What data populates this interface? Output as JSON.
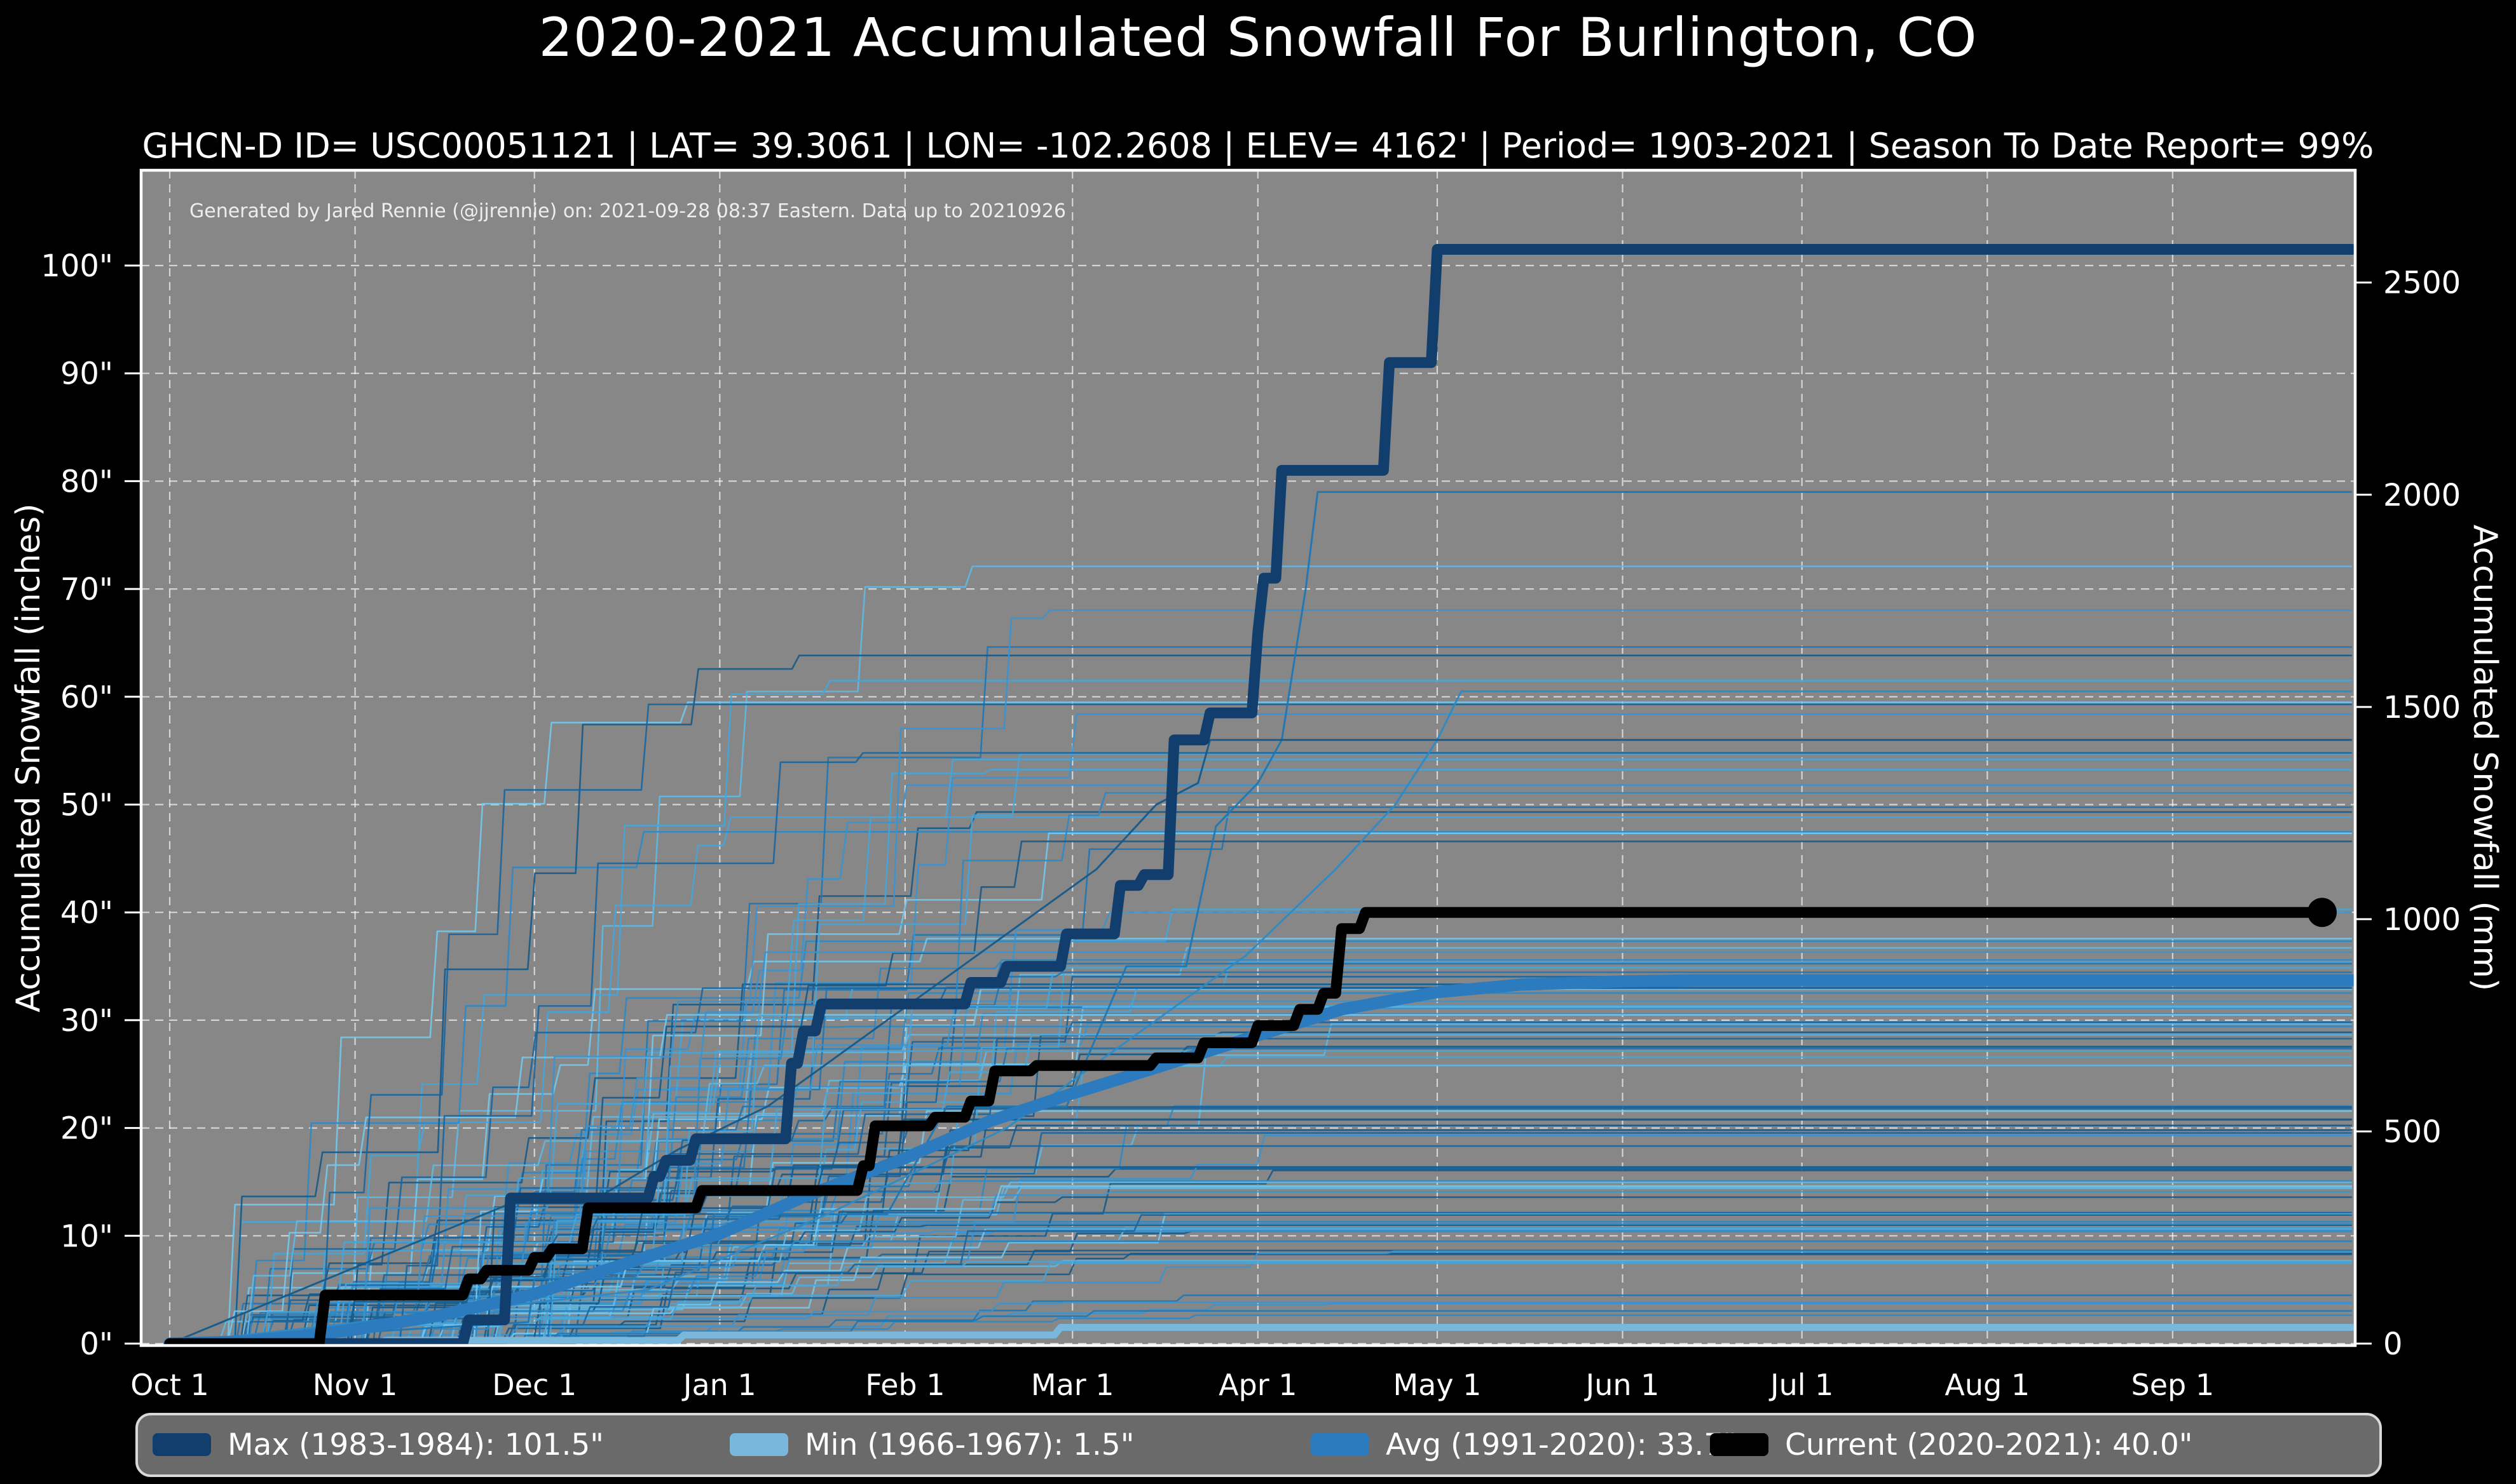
{
  "header": {
    "title": "2020-2021 Accumulated Snowfall For Burlington, CO",
    "subtitle": "GHCN-D ID= USC00051121 | LAT= 39.3061 | LON= -102.2608 | ELEV= 4162' | Period= 1903-2021 | Season To Date Report= 99%"
  },
  "attribution": "Generated by Jared Rennie (@jjrennie) on: 2021-09-28 08:37 Eastern. Data up to 20210926",
  "colors": {
    "figure_background": "#000000",
    "plot_background": "#878787",
    "gridline": "rgba(255,255,255,0.65)",
    "plot_border": "#ffffff",
    "text": "#ffffff",
    "max_line": "#123e6d",
    "min_line": "#79b7dc",
    "avg_line": "#2b7bbe",
    "current_line": "#000000",
    "legend_background": "#6a6a6a",
    "legend_border": "#d9d9d9"
  },
  "legend": {
    "items": [
      {
        "id": "max",
        "label": "Max (1983-1984):  101.5\"",
        "color": "#123e6d"
      },
      {
        "id": "min",
        "label": "Min (1966-1967):    1.5\"",
        "color": "#79b7dc"
      },
      {
        "id": "avg",
        "label": "Avg (1991-2020):  33.7\"",
        "color": "#2b7bbe"
      },
      {
        "id": "current",
        "label": "Current (2020-2021):  40.0\"",
        "color": "#000000"
      }
    ]
  },
  "chart_data": {
    "type": "line",
    "title": "2020-2021 Accumulated Snowfall For Burlington, CO",
    "x_axis": {
      "unit": "day of season (day 0 = Oct 1)",
      "range_days": [
        0,
        365
      ],
      "ticks": [
        {
          "label": "Oct 1",
          "day": 0
        },
        {
          "label": "Nov 1",
          "day": 31
        },
        {
          "label": "Dec 1",
          "day": 61
        },
        {
          "label": "Jan 1",
          "day": 92
        },
        {
          "label": "Feb 1",
          "day": 123
        },
        {
          "label": "Mar 1",
          "day": 151
        },
        {
          "label": "Apr 1",
          "day": 182
        },
        {
          "label": "May 1",
          "day": 212
        },
        {
          "label": "Jun 1",
          "day": 243
        },
        {
          "label": "Jul 1",
          "day": 273
        },
        {
          "label": "Aug 1",
          "day": 304
        },
        {
          "label": "Sep 1",
          "day": 335
        }
      ]
    },
    "y_left": {
      "label": "Accumulated Snowfall (inches)",
      "range": [
        0,
        108.8
      ],
      "grid_interval": 10,
      "ticks": [
        {
          "label": "0\"",
          "value": 0
        },
        {
          "label": "10\"",
          "value": 10
        },
        {
          "label": "20\"",
          "value": 20
        },
        {
          "label": "30\"",
          "value": 30
        },
        {
          "label": "40\"",
          "value": 40
        },
        {
          "label": "50\"",
          "value": 50
        },
        {
          "label": "60\"",
          "value": 60
        },
        {
          "label": "70\"",
          "value": 70
        },
        {
          "label": "80\"",
          "value": 80
        },
        {
          "label": "90\"",
          "value": 90
        },
        {
          "label": "100\"",
          "value": 100
        }
      ]
    },
    "y_right": {
      "label": "Accumulated Snowfall (mm)",
      "mm_per_inch": 25.4,
      "ticks": [
        {
          "label": "0",
          "mm": 0
        },
        {
          "label": "500",
          "mm": 500
        },
        {
          "label": "1000",
          "mm": 1000
        },
        {
          "label": "1500",
          "mm": 1500
        },
        {
          "label": "2000",
          "mm": 2000
        },
        {
          "label": "2500",
          "mm": 2500
        }
      ]
    },
    "grid": true,
    "legend_position": "bottom",
    "series": [
      {
        "id": "max",
        "name": "Max (1983-1984)",
        "season_total_inches": 101.5,
        "color": "#123e6d",
        "width": 17,
        "style": "step",
        "points": [
          [
            0,
            0
          ],
          [
            49,
            0
          ],
          [
            50,
            2.2
          ],
          [
            56,
            2.2
          ],
          [
            57,
            13.5
          ],
          [
            80,
            13.5
          ],
          [
            81,
            15.5
          ],
          [
            82,
            15.5
          ],
          [
            83,
            17
          ],
          [
            87,
            17
          ],
          [
            88,
            19
          ],
          [
            103,
            19
          ],
          [
            104,
            26
          ],
          [
            105,
            26
          ],
          [
            106,
            29
          ],
          [
            108,
            29
          ],
          [
            109,
            31.5
          ],
          [
            133,
            31.5
          ],
          [
            134,
            33.5
          ],
          [
            139,
            33.5
          ],
          [
            140,
            35
          ],
          [
            149,
            35
          ],
          [
            150,
            38
          ],
          [
            158,
            38
          ],
          [
            159,
            42.5
          ],
          [
            162,
            42.5
          ],
          [
            163,
            43.5
          ],
          [
            167,
            43.5
          ],
          [
            168,
            56
          ],
          [
            173,
            56
          ],
          [
            174,
            58.5
          ],
          [
            181,
            58.5
          ],
          [
            182,
            66
          ],
          [
            183,
            71
          ],
          [
            185,
            71
          ],
          [
            186,
            81
          ],
          [
            203,
            81
          ],
          [
            204,
            91
          ],
          [
            211,
            91
          ],
          [
            212,
            101.5
          ],
          [
            365,
            101.5
          ]
        ]
      },
      {
        "id": "min",
        "name": "Min (1966-1967)",
        "season_total_inches": 1.5,
        "color": "#79b7dc",
        "width": 11,
        "style": "step",
        "points": [
          [
            0,
            0
          ],
          [
            35,
            0
          ],
          [
            36,
            0.3
          ],
          [
            85,
            0.3
          ],
          [
            86,
            0.8
          ],
          [
            148,
            0.8
          ],
          [
            149,
            1.5
          ],
          [
            365,
            1.5
          ]
        ]
      },
      {
        "id": "avg",
        "name": "Avg (1991-2020)",
        "season_total_inches": 33.7,
        "color": "#2b7bbe",
        "width": 19,
        "style": "smooth",
        "points": [
          [
            0,
            0
          ],
          [
            12,
            0.2
          ],
          [
            22,
            0.7
          ],
          [
            31,
            1.3
          ],
          [
            45,
            2.6
          ],
          [
            61,
            4.6
          ],
          [
            75,
            7.2
          ],
          [
            92,
            10.2
          ],
          [
            106,
            13.6
          ],
          [
            123,
            17.2
          ],
          [
            137,
            20.6
          ],
          [
            151,
            23.2
          ],
          [
            165,
            25.6
          ],
          [
            182,
            28.6
          ],
          [
            196,
            31
          ],
          [
            212,
            32.6
          ],
          [
            226,
            33.3
          ],
          [
            243,
            33.6
          ],
          [
            255,
            33.7
          ],
          [
            365,
            33.7
          ]
        ]
      },
      {
        "id": "current",
        "name": "Current (2020-2021)",
        "season_total_inches": 40.0,
        "color": "#000000",
        "width": 17,
        "style": "step",
        "end_marker": true,
        "end_day": 360,
        "points": [
          [
            0,
            0
          ],
          [
            25,
            0
          ],
          [
            26,
            4.5
          ],
          [
            49,
            4.5
          ],
          [
            50,
            6
          ],
          [
            52,
            6
          ],
          [
            53,
            6.8
          ],
          [
            60,
            6.8
          ],
          [
            61,
            8
          ],
          [
            63,
            8
          ],
          [
            64,
            8.8
          ],
          [
            69,
            8.8
          ],
          [
            70,
            12.6
          ],
          [
            88,
            12.6
          ],
          [
            89,
            14.2
          ],
          [
            115,
            14.2
          ],
          [
            116,
            16.5
          ],
          [
            117,
            16.5
          ],
          [
            118,
            20.2
          ],
          [
            127,
            20.2
          ],
          [
            128,
            21
          ],
          [
            133,
            21
          ],
          [
            134,
            22.5
          ],
          [
            137,
            22.5
          ],
          [
            138,
            25.3
          ],
          [
            144,
            25.3
          ],
          [
            145,
            25.8
          ],
          [
            164,
            25.8
          ],
          [
            165,
            26.5
          ],
          [
            172,
            26.5
          ],
          [
            173,
            27.9
          ],
          [
            181,
            27.9
          ],
          [
            182,
            29.5
          ],
          [
            188,
            29.5
          ],
          [
            189,
            31
          ],
          [
            192,
            31
          ],
          [
            193,
            32.5
          ],
          [
            195,
            32.5
          ],
          [
            196,
            38.5
          ],
          [
            199,
            38.5
          ],
          [
            200,
            40
          ],
          [
            360,
            40
          ]
        ]
      }
    ],
    "notable_background": [
      {
        "color": "#1f77b4",
        "points": [
          [
            0,
            0
          ],
          [
            60,
            2
          ],
          [
            61,
            6
          ],
          [
            90,
            6
          ],
          [
            91,
            12
          ],
          [
            120,
            12
          ],
          [
            130,
            22
          ],
          [
            150,
            22
          ],
          [
            160,
            35
          ],
          [
            170,
            35
          ],
          [
            175,
            48
          ],
          [
            182,
            52
          ],
          [
            186,
            56
          ],
          [
            190,
            70
          ],
          [
            192,
            79
          ],
          [
            365,
            79
          ]
        ]
      },
      {
        "color": "#2d8ac6",
        "points": [
          [
            0,
            0
          ],
          [
            80,
            5
          ],
          [
            110,
            12
          ],
          [
            140,
            20
          ],
          [
            160,
            28
          ],
          [
            180,
            36
          ],
          [
            195,
            44
          ],
          [
            205,
            50
          ],
          [
            212,
            56
          ],
          [
            216,
            60.5
          ],
          [
            365,
            60.5
          ]
        ]
      },
      {
        "color": "#155a8a",
        "points": [
          [
            0,
            0
          ],
          [
            57,
            13
          ],
          [
            70,
            13
          ],
          [
            85,
            18
          ],
          [
            100,
            22
          ],
          [
            120,
            30
          ],
          [
            140,
            38
          ],
          [
            155,
            44
          ],
          [
            165,
            50
          ],
          [
            172,
            52
          ],
          [
            174,
            56
          ],
          [
            365,
            56
          ]
        ]
      }
    ],
    "background_years": {
      "count": 110,
      "description": "thin stepped accumulation curves, one per season 1903-2021, totals mostly 3-65 inches",
      "palette": [
        "#155a8a",
        "#1f77b4",
        "#2d8ac6",
        "#46a5d9",
        "#5fb8e3",
        "#74c7ec",
        "#3a93cf",
        "#1a659e"
      ]
    }
  }
}
